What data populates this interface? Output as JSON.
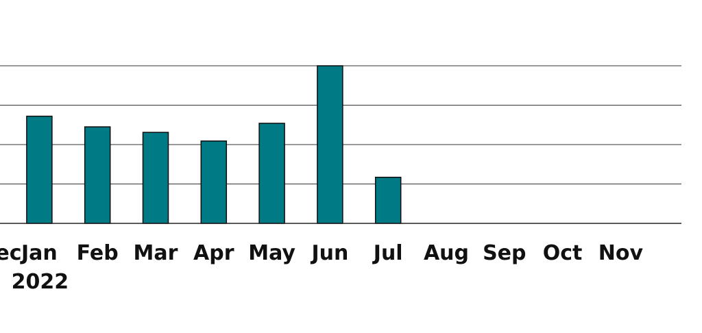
{
  "chart_data": {
    "type": "bar",
    "categories": [
      "Jan",
      "Feb",
      "Mar",
      "Apr",
      "May",
      "Jun",
      "Jul",
      "Aug",
      "Sep",
      "Oct",
      "Nov"
    ],
    "year_label": "2022",
    "left_cut_label": "Dec",
    "values": [
      2.72,
      2.45,
      2.31,
      2.09,
      2.54,
      4.0,
      1.17,
      null,
      null,
      null,
      null
    ],
    "ylim": [
      0,
      4
    ],
    "gridlines": [
      1,
      2,
      3,
      4
    ],
    "title": "",
    "xlabel": "",
    "ylabel": "",
    "grid": true,
    "colors": {
      "bar": "#007A84",
      "bar_outline": "#0D0D0D",
      "grid": "#333333",
      "text": "#111111"
    }
  }
}
